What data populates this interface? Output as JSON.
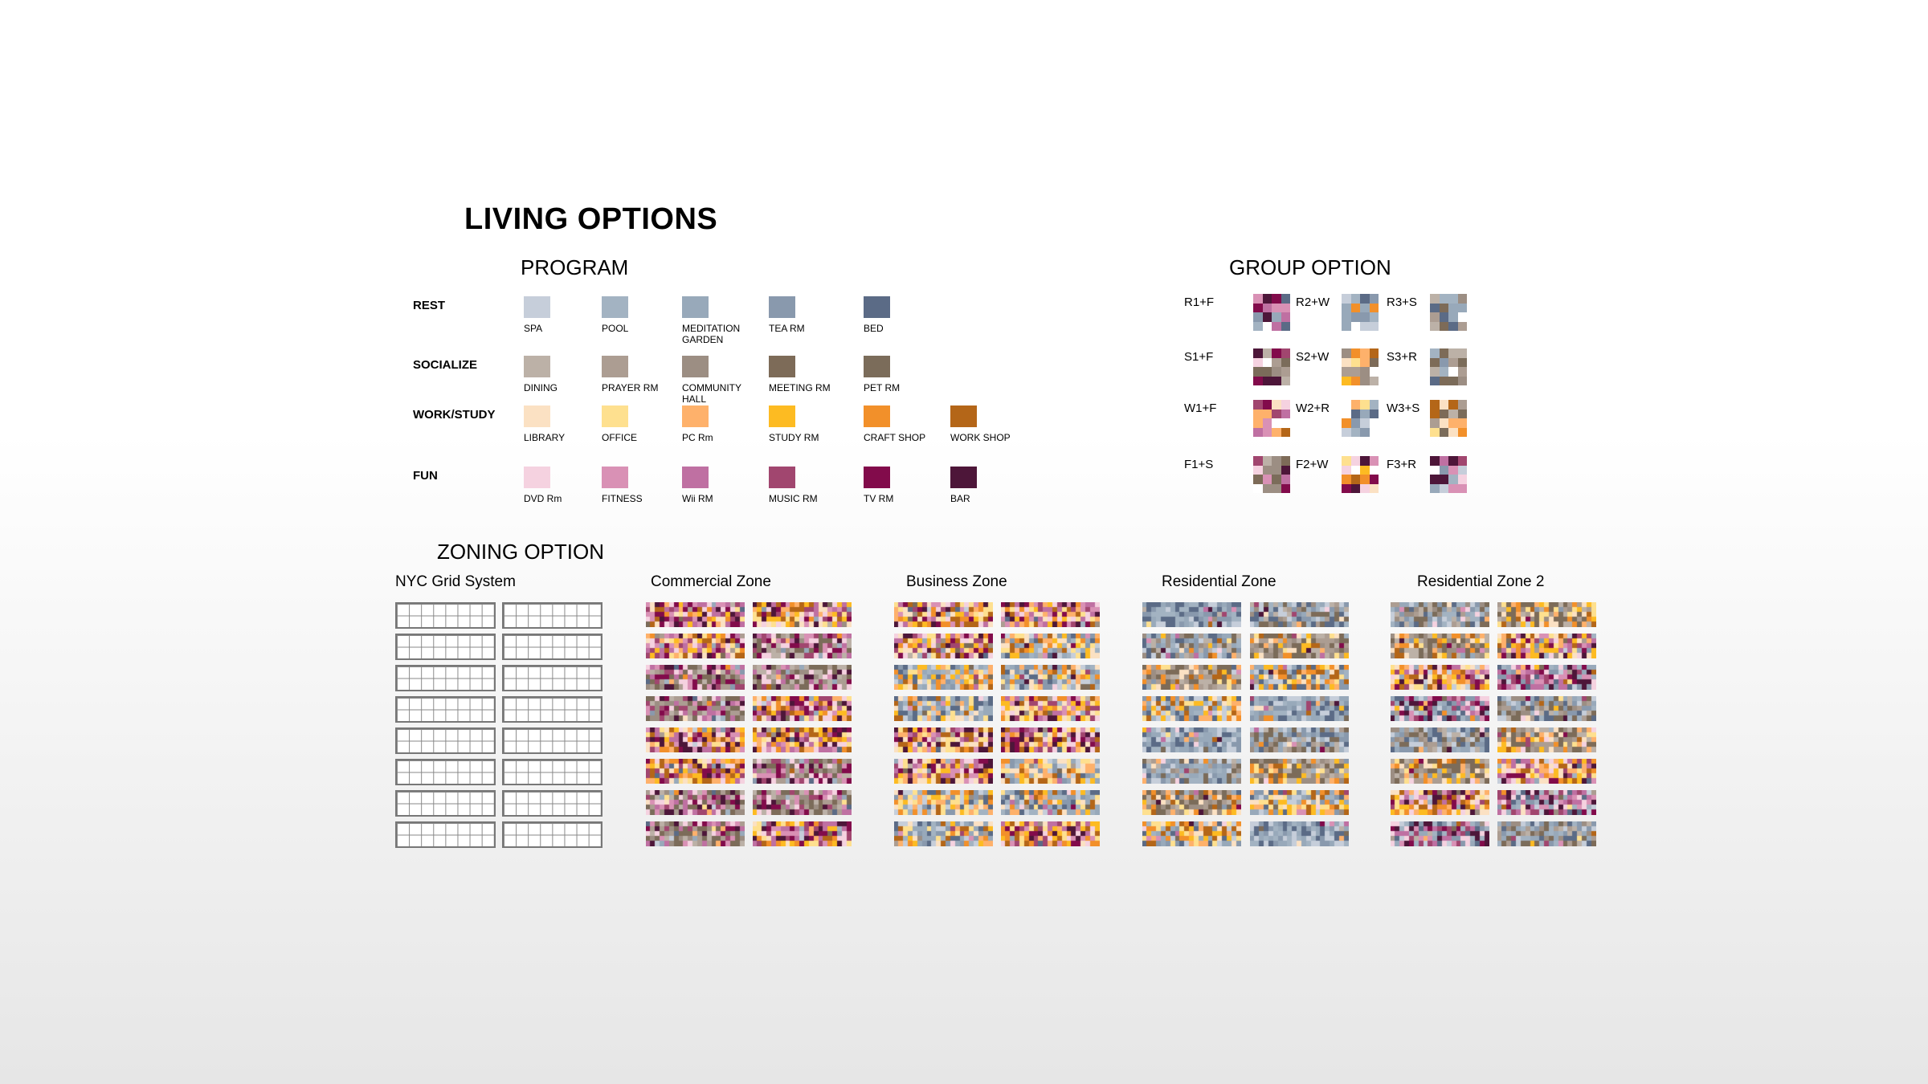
{
  "title": "LIVING OPTIONS",
  "program": {
    "heading": "PROGRAM",
    "categories": [
      {
        "name": "REST",
        "items": [
          {
            "label": "SPA",
            "color": "#c6ceda"
          },
          {
            "label": "POOL",
            "color": "#a3b3c2"
          },
          {
            "label": "MEDITATION GARDEN",
            "color": "#98a9ba"
          },
          {
            "label": "TEA RM",
            "color": "#8999ad"
          },
          {
            "label": "BED",
            "color": "#5b6b86"
          }
        ]
      },
      {
        "name": "SOCIALIZE",
        "items": [
          {
            "label": "DINING",
            "color": "#bcb1a7"
          },
          {
            "label": "PRAYER RM",
            "color": "#ac9d92"
          },
          {
            "label": "COMMUNITY HALL",
            "color": "#9c8e83"
          },
          {
            "label": "MEETING RM",
            "color": "#7d6b58"
          },
          {
            "label": "PET RM",
            "color": "#7b6c5a"
          }
        ]
      },
      {
        "name": "WORK/STUDY",
        "items": [
          {
            "label": "LIBRARY",
            "color": "#fbe1c3"
          },
          {
            "label": "OFFICE",
            "color": "#fee08f"
          },
          {
            "label": "PC Rm",
            "color": "#feb16b"
          },
          {
            "label": "STUDY RM",
            "color": "#fdbb22"
          },
          {
            "label": "CRAFT SHOP",
            "color": "#f2902a"
          },
          {
            "label": "WORK SHOP",
            "color": "#b46618"
          }
        ]
      },
      {
        "name": "FUN",
        "items": [
          {
            "label": "DVD Rm",
            "color": "#f5d2e0"
          },
          {
            "label": "FITNESS",
            "color": "#d991b5"
          },
          {
            "label": "Wii RM",
            "color": "#bf70a2"
          },
          {
            "label": "MUSIC RM",
            "color": "#a1466f"
          },
          {
            "label": "TV RM",
            "color": "#820b4b"
          },
          {
            "label": "BAR",
            "color": "#4d1639"
          }
        ]
      }
    ]
  },
  "group_option": {
    "heading": "GROUP OPTION",
    "rows": [
      [
        "R1+F",
        "R2+W",
        "R3+S"
      ],
      [
        "S1+F",
        "S2+W",
        "S3+R"
      ],
      [
        "W1+F",
        "W2+R",
        "W3+S"
      ],
      [
        "F1+S",
        "F2+W",
        "F3+R"
      ]
    ]
  },
  "zoning_option": {
    "heading": "ZONING OPTION",
    "zones": [
      {
        "title": "NYC Grid System"
      },
      {
        "title": "Commercial Zone"
      },
      {
        "title": "Business Zone"
      },
      {
        "title": "Residential Zone"
      },
      {
        "title": "Residential Zone 2"
      }
    ]
  }
}
